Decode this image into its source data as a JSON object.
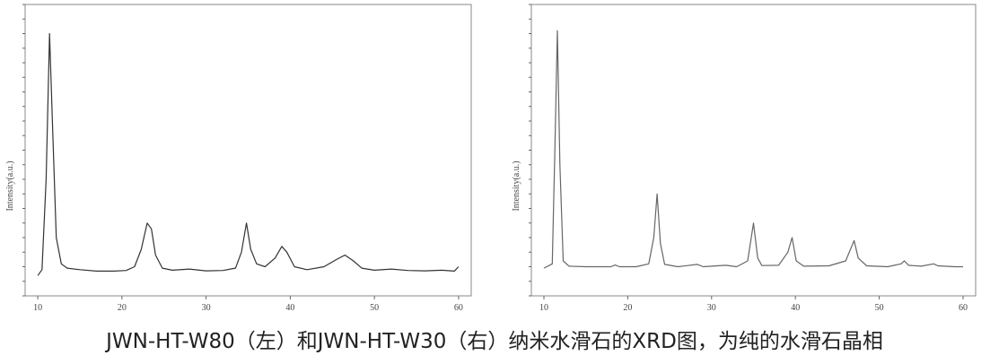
{
  "chart_data": [
    {
      "type": "line",
      "y_label": "Intensity(a.u.)",
      "color": "#333333",
      "xlim": [
        8.5,
        61.5
      ],
      "xticks": [
        10,
        20,
        30,
        40,
        50,
        60
      ],
      "ylim": [
        0,
        100
      ],
      "yticks": [
        0,
        5,
        10,
        15,
        20,
        25,
        30,
        35,
        40,
        45,
        50,
        55,
        60,
        65,
        70,
        75,
        80,
        85,
        90,
        95,
        100
      ],
      "x": [
        10,
        10.5,
        11,
        11.4,
        11.8,
        12.2,
        12.8,
        13.5,
        15,
        17,
        19,
        20.5,
        21.5,
        22.3,
        23,
        23.5,
        24,
        24.8,
        26,
        28,
        30,
        32,
        33.5,
        34.2,
        34.8,
        35.3,
        36,
        37,
        38.2,
        39,
        39.6,
        40.5,
        42,
        44,
        45.5,
        46.5,
        47.5,
        48.5,
        50,
        52,
        54,
        56,
        58,
        59.5,
        60
      ],
      "values": [
        7,
        9,
        40,
        90,
        55,
        20,
        11,
        9.5,
        9,
        8.5,
        8.5,
        8.7,
        10,
        16,
        25,
        23,
        14,
        9.5,
        8.8,
        9.2,
        8.6,
        8.7,
        9.5,
        15,
        25,
        16,
        11,
        10,
        13,
        17,
        15,
        10,
        9,
        10,
        12.5,
        14,
        12,
        9.5,
        8.8,
        9.2,
        8.7,
        8.6,
        8.8,
        8.5,
        10
      ]
    },
    {
      "type": "line",
      "y_label": "Intensity(a.u.)",
      "color": "#666666",
      "xlim": [
        8.5,
        61.5
      ],
      "xticks": [
        10,
        20,
        30,
        40,
        50,
        60
      ],
      "ylim": [
        0,
        100
      ],
      "yticks": [
        0,
        5,
        10,
        15,
        20,
        25,
        30,
        35,
        40,
        45,
        50,
        55,
        60,
        65,
        70,
        75,
        80,
        85,
        90,
        95,
        100
      ],
      "x": [
        10,
        11,
        11.3,
        11.6,
        11.9,
        12.3,
        13,
        15,
        18,
        18.5,
        19,
        21,
        22.5,
        23.1,
        23.5,
        23.9,
        24.4,
        26,
        28.3,
        29,
        31.7,
        33,
        34.3,
        35,
        35.5,
        36,
        38,
        39.1,
        39.6,
        40.1,
        41,
        44,
        46,
        47,
        47.5,
        48.5,
        51,
        52.6,
        53,
        53.5,
        55,
        56.5,
        57,
        59,
        60
      ],
      "values": [
        9.5,
        11,
        50,
        91,
        45,
        12,
        10.2,
        10,
        10,
        10.6,
        10,
        10,
        11,
        20,
        35,
        18,
        10.8,
        10,
        10.8,
        10,
        10.5,
        10,
        12,
        25,
        13,
        10.4,
        10.5,
        15,
        20,
        12,
        10.2,
        10.3,
        12,
        19,
        13,
        10.3,
        10,
        11,
        12,
        10.5,
        10.2,
        11,
        10.3,
        10,
        10
      ]
    }
  ],
  "caption": "JWN-HT-W80（左）和JWN-HT-W30（右）纳米水滑石的XRD图，为纯的水滑石晶相"
}
